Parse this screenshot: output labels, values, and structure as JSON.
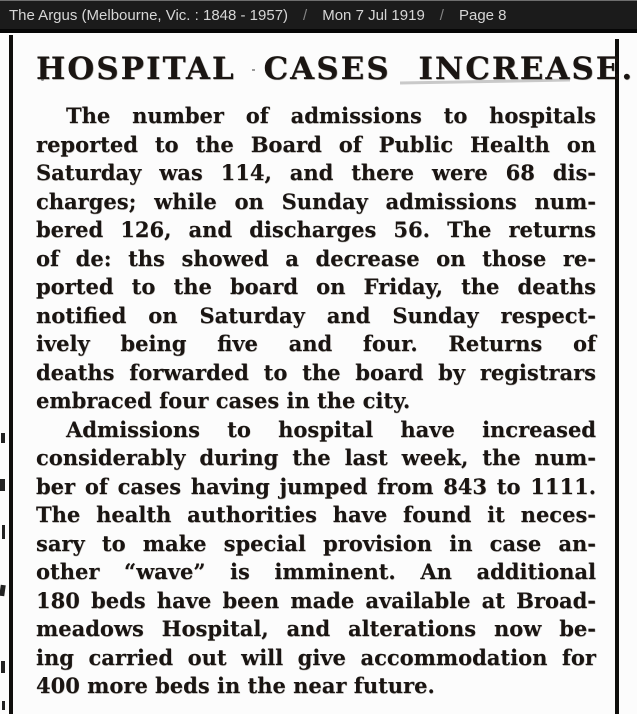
{
  "header": {
    "source": "The Argus (Melbourne, Vic. : 1848 - 1957)",
    "separator1": "/",
    "date": "Mon 7 Jul 1919",
    "separator2": "/",
    "page": "Page 8"
  },
  "article": {
    "headline": "HOSPITAL CASES INCREASE.",
    "lines": [
      "The number of admissions to hospitals",
      "reported to the Board of Public Health on",
      "Saturday was 114, and there were 68 dis-",
      "charges; while on Sunday admissions num-",
      "bered 126, and discharges 56. The returns",
      "of de: ths showed a decrease on those re-",
      "ported to the board on Friday, the deaths",
      "notified on Saturday and Sunday respect-",
      "ively being five and four. Returns of",
      "deaths forwarded to the board by registrars",
      "embraced four cases in the city.",
      "Admissions to hospital have increased",
      "considerably during the last week, the num-",
      "ber of cases having jumped from 843 to 1111.",
      "The health authorities have found it neces-",
      "sary to make special provision in case an-",
      "other “wave” is imminent. An additional",
      "180 beds have been made available at Broad-",
      "meadows Hospital, and alterations now be-",
      "ing carried out will give accommodation for",
      "400 more beds in the near future."
    ]
  },
  "colors": {
    "header_bg": "#1b1b1b",
    "header_text": "#d6d6d6",
    "separator": "#858585",
    "paper": "#fcfcfc",
    "ink": "#1a1512",
    "rule": "#0f0e0c"
  }
}
